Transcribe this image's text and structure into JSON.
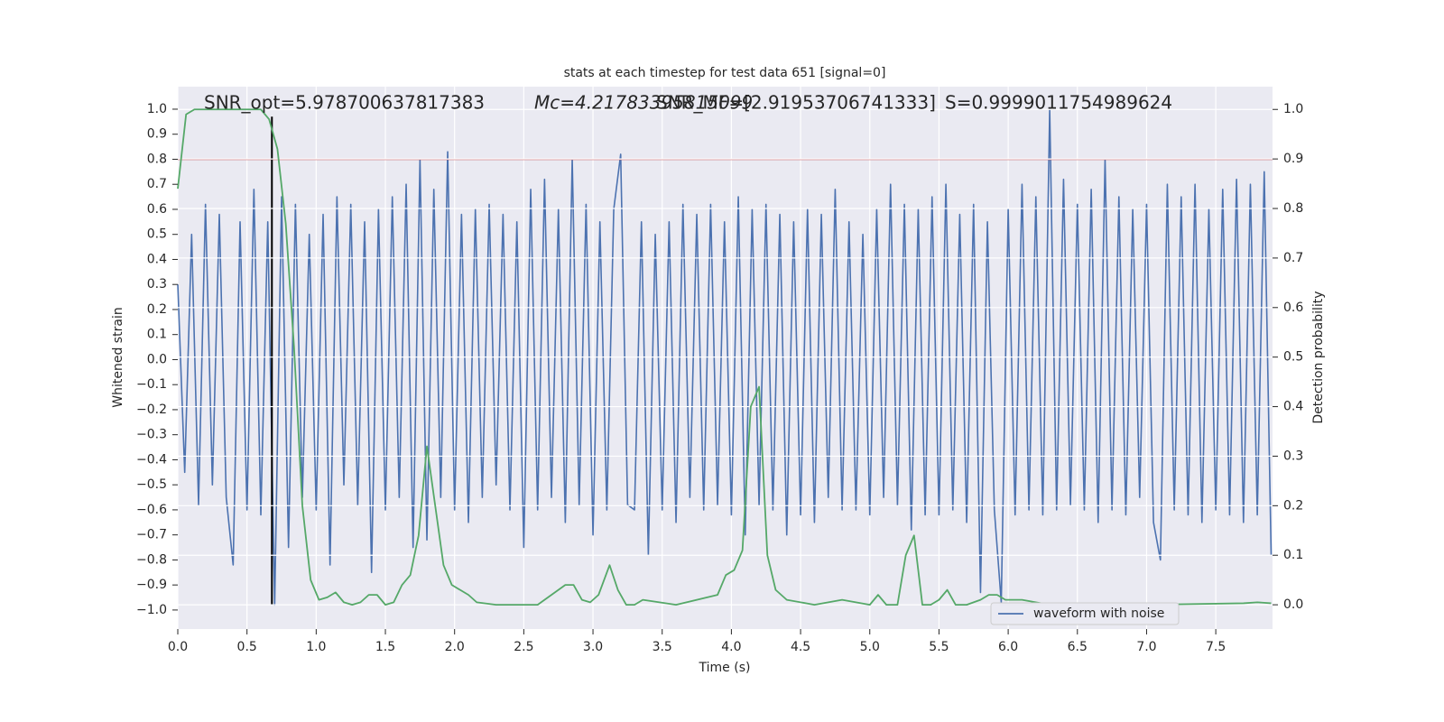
{
  "chart_data": {
    "type": "line",
    "title": "stats at each timestep for test data 651 [signal=0]",
    "xlabel": "Time (s)",
    "ylabel": "Whitened strain",
    "y2label": "Detection probability",
    "annotations": [
      "SNR_opt=5.978700637817383",
      "Mc=4.21783395815099",
      "SNR_MF=[2.91953706741333]",
      "S=0.9999011754989624"
    ],
    "xlim": [
      0,
      7.91
    ],
    "ylim": [
      -1.076,
      1.09
    ],
    "y2lim": [
      -0.049,
      1.046
    ],
    "xticks": [
      {
        "value": 0,
        "label": "0.0"
      },
      0.5,
      {
        "value": 1,
        "label": "1.0"
      },
      1.5,
      {
        "value": 2,
        "label": "2.0"
      },
      2.5,
      {
        "value": 3,
        "label": "3.0"
      },
      3.5,
      {
        "value": 4,
        "label": "4.0"
      },
      4.5,
      {
        "value": 5,
        "label": "5.0"
      },
      5.5,
      {
        "value": 6,
        "label": "6.0"
      },
      6.5,
      {
        "value": 7,
        "label": "7.0"
      },
      7.5
    ],
    "yticks": [
      {
        "value": -1,
        "label": "−1.0"
      },
      {
        "value": -0.9,
        "label": "−0.9"
      },
      {
        "value": -0.8,
        "label": "−0.8"
      },
      {
        "value": -0.7,
        "label": "−0.7"
      },
      {
        "value": -0.6,
        "label": "−0.6"
      },
      {
        "value": -0.5,
        "label": "−0.5"
      },
      {
        "value": -0.4,
        "label": "−0.4"
      },
      {
        "value": -0.3,
        "label": "−0.3"
      },
      {
        "value": -0.2,
        "label": "−0.2"
      },
      {
        "value": -0.1,
        "label": "−0.1"
      },
      {
        "value": 0,
        "label": "0.0"
      },
      0.1,
      0.2,
      0.3,
      0.4,
      0.5,
      0.6,
      0.7,
      0.8,
      0.9,
      {
        "value": 1,
        "label": "1.0"
      }
    ],
    "y2ticks": [
      {
        "value": 0,
        "label": "0.0"
      },
      0.1,
      0.2,
      0.3,
      0.4,
      0.5,
      0.6,
      0.7,
      0.8,
      0.9,
      {
        "value": 1,
        "label": "1.0"
      }
    ],
    "grid": true,
    "legend": "lower right",
    "hlines": [
      {
        "y": 0.8,
        "color": "#c44e52"
      }
    ],
    "vlines": [
      {
        "x": 0.68,
        "ymin": -0.98,
        "ymax": 0.97,
        "color": "#000000"
      }
    ],
    "series": [
      {
        "name": "waveform with noise",
        "color": "#4c72b0",
        "x": [
          0,
          0.05,
          0.1,
          0.15,
          0.2,
          0.25,
          0.3,
          0.35,
          0.4,
          0.45,
          0.5,
          0.55,
          0.6,
          0.65,
          0.7,
          0.75,
          0.8,
          0.85,
          0.9,
          0.95,
          1,
          1.05,
          1.1,
          1.15,
          1.2,
          1.25,
          1.3,
          1.35,
          1.4,
          1.45,
          1.5,
          1.55,
          1.6,
          1.65,
          1.7,
          1.75,
          1.8,
          1.85,
          1.9,
          1.95,
          2,
          2.05,
          2.1,
          2.15,
          2.2,
          2.25,
          2.3,
          2.35,
          2.4,
          2.45,
          2.5,
          2.55,
          2.6,
          2.65,
          2.7,
          2.75,
          2.8,
          2.85,
          2.9,
          2.95,
          3,
          3.05,
          3.1,
          3.15,
          3.2,
          3.25,
          3.3,
          3.35,
          3.4,
          3.45,
          3.5,
          3.55,
          3.6,
          3.65,
          3.7,
          3.75,
          3.8,
          3.85,
          3.9,
          3.95,
          4,
          4.05,
          4.1,
          4.15,
          4.2,
          4.25,
          4.3,
          4.35,
          4.4,
          4.45,
          4.5,
          4.55,
          4.6,
          4.65,
          4.7,
          4.75,
          4.8,
          4.85,
          4.9,
          4.95,
          5,
          5.05,
          5.1,
          5.15,
          5.2,
          5.25,
          5.3,
          5.35,
          5.4,
          5.45,
          5.5,
          5.55,
          5.6,
          5.65,
          5.7,
          5.75,
          5.8,
          5.85,
          5.9,
          5.95,
          6,
          6.05,
          6.1,
          6.15,
          6.2,
          6.25,
          6.3,
          6.35,
          6.4,
          6.45,
          6.5,
          6.55,
          6.6,
          6.65,
          6.7,
          6.75,
          6.8,
          6.85,
          6.9,
          6.95,
          7,
          7.05,
          7.1,
          7.15,
          7.2,
          7.25,
          7.3,
          7.35,
          7.4,
          7.45,
          7.5,
          7.55,
          7.6,
          7.65,
          7.7,
          7.75,
          7.8,
          7.85,
          7.9
        ],
        "values": [
          0.3,
          -0.45,
          0.5,
          -0.58,
          0.62,
          -0.5,
          0.58,
          -0.55,
          -0.82,
          0.55,
          -0.6,
          0.68,
          -0.62,
          0.55,
          -0.98,
          0.65,
          -0.75,
          0.62,
          -0.55,
          0.5,
          -0.6,
          0.58,
          -0.82,
          0.65,
          -0.5,
          0.62,
          -0.58,
          0.55,
          -0.85,
          0.6,
          -0.6,
          0.65,
          -0.55,
          0.7,
          -0.75,
          0.8,
          -0.72,
          0.68,
          -0.55,
          0.83,
          -0.6,
          0.58,
          -0.65,
          0.6,
          -0.55,
          0.62,
          -0.5,
          0.58,
          -0.6,
          0.55,
          -0.75,
          0.68,
          -0.6,
          0.72,
          -0.55,
          0.6,
          -0.65,
          0.8,
          -0.58,
          0.62,
          -0.7,
          0.55,
          -0.6,
          0.6,
          0.82,
          -0.58,
          -0.6,
          0.55,
          -0.78,
          0.5,
          -0.6,
          0.55,
          -0.65,
          0.62,
          -0.55,
          0.58,
          -0.6,
          0.62,
          -0.58,
          0.55,
          -0.62,
          0.65,
          -0.7,
          0.6,
          -0.58,
          0.62,
          -0.6,
          0.58,
          -0.7,
          0.55,
          -0.62,
          0.6,
          -0.65,
          0.58,
          -0.55,
          0.68,
          -0.6,
          0.55,
          -0.6,
          0.5,
          -0.62,
          0.6,
          -0.55,
          0.7,
          -0.58,
          0.62,
          -0.68,
          0.6,
          -0.62,
          0.65,
          -0.62,
          0.7,
          -0.6,
          0.58,
          -0.65,
          0.62,
          -0.93,
          0.55,
          -0.6,
          -0.97,
          0.6,
          -0.62,
          0.7,
          -0.6,
          0.65,
          -0.62,
          1.0,
          -0.6,
          0.72,
          -0.58,
          0.62,
          -0.6,
          0.68,
          -0.65,
          0.8,
          -0.6,
          0.65,
          -0.62,
          0.6,
          -0.55,
          0.62,
          -0.65,
          -0.8,
          0.7,
          -0.6,
          0.65,
          -0.62,
          0.7,
          -0.65,
          0.6,
          -0.6,
          0.68,
          -0.62,
          0.72,
          -0.65,
          0.7,
          -0.62,
          0.75,
          -0.78
        ]
      },
      {
        "color": "#55a868",
        "axis": "y2",
        "x": [
          0,
          0.06,
          0.12,
          0.6,
          0.66,
          0.72,
          0.78,
          0.84,
          0.9,
          0.96,
          1.02,
          1.08,
          1.14,
          1.2,
          1.26,
          1.32,
          1.38,
          1.44,
          1.5,
          1.56,
          1.62,
          1.68,
          1.74,
          1.8,
          1.86,
          1.92,
          1.98,
          2.04,
          2.1,
          2.16,
          2.3,
          2.6,
          2.8,
          2.86,
          2.92,
          2.98,
          3.04,
          3.12,
          3.18,
          3.24,
          3.3,
          3.36,
          3.6,
          3.9,
          3.96,
          4.02,
          4.08,
          4.14,
          4.2,
          4.26,
          4.32,
          4.4,
          4.6,
          4.8,
          5.0,
          5.06,
          5.12,
          5.2,
          5.26,
          5.32,
          5.38,
          5.44,
          5.5,
          5.56,
          5.62,
          5.7,
          5.8,
          5.86,
          5.92,
          5.98,
          6.1,
          6.3,
          7.0,
          7.7,
          7.8,
          7.9
        ],
        "values": [
          0.84,
          0.99,
          1.0,
          1.0,
          0.98,
          0.92,
          0.77,
          0.52,
          0.2,
          0.05,
          0.01,
          0.015,
          0.025,
          0.005,
          0.0,
          0.005,
          0.02,
          0.02,
          0.0,
          0.005,
          0.04,
          0.06,
          0.14,
          0.32,
          0.2,
          0.08,
          0.04,
          0.03,
          0.02,
          0.005,
          0.0,
          0.0,
          0.04,
          0.04,
          0.01,
          0.005,
          0.02,
          0.08,
          0.03,
          0.0,
          0.0,
          0.01,
          0.0,
          0.02,
          0.06,
          0.07,
          0.11,
          0.4,
          0.44,
          0.1,
          0.03,
          0.01,
          0.0,
          0.01,
          0.0,
          0.02,
          0.0,
          0.0,
          0.1,
          0.14,
          0.0,
          0.0,
          0.01,
          0.03,
          0.0,
          0.0,
          0.01,
          0.02,
          0.02,
          0.01,
          0.01,
          0.0,
          0.0,
          0.003,
          0.005,
          0.003
        ]
      }
    ]
  }
}
